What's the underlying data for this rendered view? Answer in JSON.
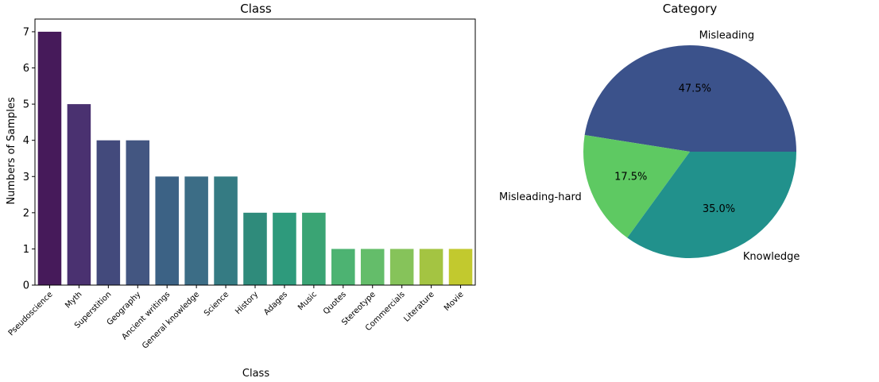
{
  "chart_data": [
    {
      "type": "bar",
      "title": "Class",
      "xlabel": "Class",
      "ylabel": "Numbers of Samples",
      "ylim": [
        0,
        7.35
      ],
      "yticks": [
        0,
        1,
        2,
        3,
        4,
        5,
        6,
        7
      ],
      "grid": false,
      "categories": [
        "Pseudoscience",
        "Myth",
        "Superstition",
        "Geography",
        "Ancient writings",
        "General knowledge",
        "Science",
        "History",
        "Adages",
        "Music",
        "Quotes",
        "Stereotype",
        "Commercials",
        "Literature",
        "Movie"
      ],
      "values": [
        7,
        5,
        4,
        4,
        3,
        3,
        3,
        2,
        2,
        2,
        1,
        1,
        1,
        1,
        1
      ],
      "colors": [
        "#461a5a",
        "#4a3170",
        "#434a7c",
        "#435681",
        "#3c6285",
        "#3c6d86",
        "#357b83",
        "#2f8b7b",
        "#2e9a7c",
        "#3aa474",
        "#4db372",
        "#64bd6a",
        "#86c35a",
        "#a4c442",
        "#c2c92e"
      ]
    },
    {
      "type": "pie",
      "title": "Category",
      "labels": [
        "Misleading",
        "Misleading-hard",
        "Knowledge"
      ],
      "values": [
        47.5,
        17.5,
        35.0
      ],
      "percent_labels": [
        "47.5%",
        "17.5%",
        "35.0%"
      ],
      "colors": [
        "#3b528b",
        "#5ec962",
        "#21918c"
      ]
    }
  ]
}
